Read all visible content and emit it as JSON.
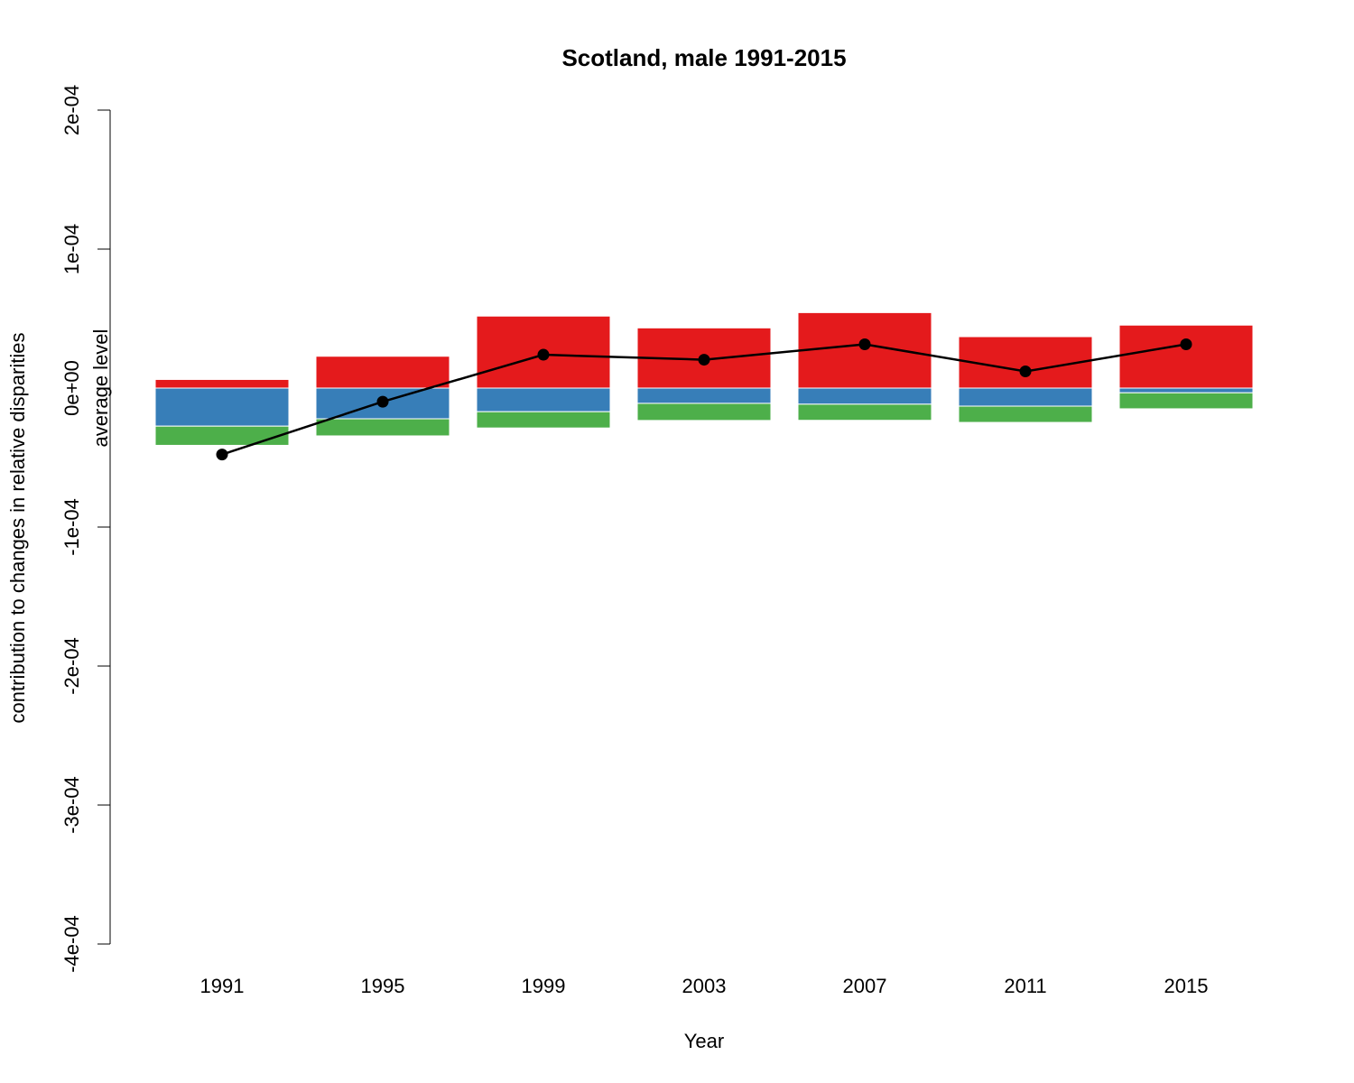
{
  "chart_data": {
    "type": "bar",
    "title": "Scotland, male 1991-2015",
    "xlabel": "Year",
    "ylabel": "contribution to changes in relative disparities",
    "annotation": "average level",
    "categories": [
      "1991",
      "1995",
      "1999",
      "2003",
      "2007",
      "2011",
      "2015"
    ],
    "yticks": [
      -0.0004,
      -0.0003,
      -0.0002,
      -0.0001,
      0,
      0.0001,
      0.0002
    ],
    "ytick_labels": [
      "-4e-04",
      "-3e-04",
      "-2e-04",
      "-1e-04",
      "0e+00",
      "1e-04",
      "2e-04"
    ],
    "ylim": [
      -0.0004,
      0.0002
    ],
    "stacked": true,
    "colors": {
      "red": "#e41a1c",
      "blue": "#377eb8",
      "green": "#4daf4a",
      "line": "#000000"
    },
    "series": [
      {
        "values": [
          6.2e-06,
          2.29e-05,
          5.18e-05,
          4.33e-05,
          5.43e-05,
          3.7e-05,
          4.53e-05
        ],
        "color": "#e41a1c",
        "stack": "positive"
      },
      {
        "values": [
          -2.74e-05,
          -2.21e-05,
          -1.7e-05,
          -1.1e-05,
          -1.16e-05,
          -1.3e-05,
          -3.4e-06
        ],
        "color": "#377eb8",
        "stack": "negative"
      },
      {
        "values": [
          -1.38e-05,
          -1.23e-05,
          -1.17e-05,
          -1.23e-05,
          -1.16e-05,
          -1.17e-05,
          -1.15e-05
        ],
        "color": "#4daf4a",
        "stack": "negative"
      }
    ],
    "line": {
      "values": [
        -4.78e-05,
        -9.8e-06,
        2.4e-05,
        2.04e-05,
        3.15e-05,
        1.2e-05,
        3.15e-05
      ],
      "color": "#000000"
    }
  }
}
